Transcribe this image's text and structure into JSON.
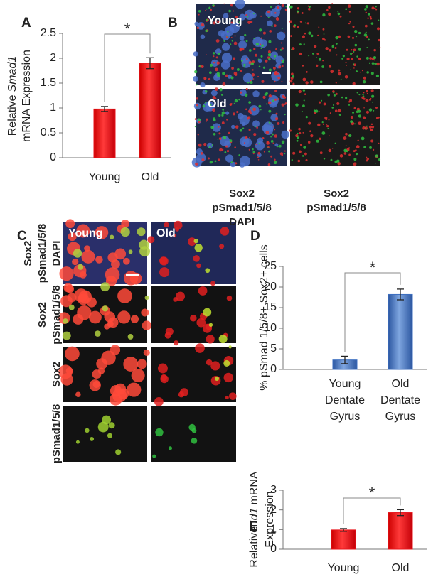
{
  "chart_data": [
    {
      "type": "bar",
      "panel_label": "A",
      "y_label": {
        "prefix": "Relative",
        "italic": "Smad1",
        "rest": "mRNA Expression"
      },
      "categories": [
        "Young",
        "Old"
      ],
      "values": [
        0.98,
        1.9
      ],
      "errors": [
        0.05,
        0.11
      ],
      "color": "#e8141b",
      "ylim": [
        0,
        2.5
      ],
      "yticks": [
        0,
        0.5,
        1,
        1.5,
        2,
        2.5
      ],
      "annotation": "*"
    },
    {
      "type": "bar",
      "panel_label": "D",
      "y_label": {
        "prefix": "% pSmad 1/5/8+ Sox2+ cells"
      },
      "categories": [
        "Young Dentate Gyrus",
        "Old Dentate Gyrus"
      ],
      "values": [
        2.3,
        18.2
      ],
      "errors": [
        0.9,
        1.3
      ],
      "color": "#3d6fc0",
      "ylim": [
        0,
        25
      ],
      "yticks": [
        0,
        5,
        10,
        15,
        20,
        25
      ],
      "annotation": "*"
    },
    {
      "type": "bar",
      "panel_label": "E",
      "y_label": {
        "prefix": "Relative",
        "italic": "Id1",
        "rest": "mRNA Expression"
      },
      "categories": [
        "Young",
        "Old"
      ],
      "values": [
        0.98,
        1.86
      ],
      "errors": [
        0.07,
        0.15
      ],
      "color": "#e8141b",
      "ylim": [
        0,
        3
      ],
      "yticks": [
        0,
        1,
        2,
        3
      ],
      "annotation": "*"
    }
  ],
  "panel_B": {
    "label": "B",
    "rows": [
      "Young",
      "Old"
    ],
    "captions": [
      [
        "Sox2",
        "pSmad1/5/8",
        "DAPI"
      ],
      [
        "Sox2",
        "pSmad1/5/8"
      ]
    ]
  },
  "panel_C": {
    "label": "C",
    "columns": [
      "Young",
      "Old"
    ],
    "row_labels": [
      [
        "Sox2",
        "pSmad1/5/8",
        "DAPI"
      ],
      [
        "Sox2",
        "pSmad1/5/8"
      ],
      [
        "Sox2"
      ],
      [
        "pSmad1/5/8"
      ]
    ]
  }
}
